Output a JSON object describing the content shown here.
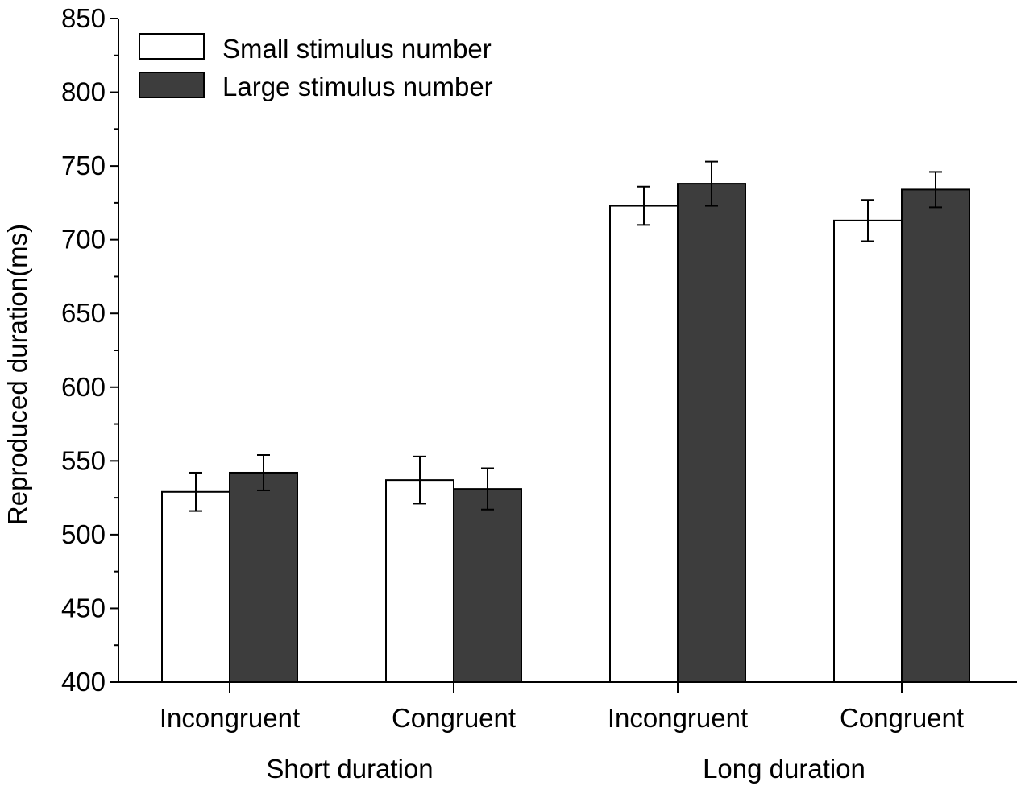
{
  "chart_data": {
    "type": "bar",
    "title": "",
    "ylabel": "Reproduced duration(ms)",
    "xlabel": "",
    "ylim": [
      400,
      850
    ],
    "yticks": [
      400,
      450,
      500,
      550,
      600,
      650,
      700,
      750,
      800,
      850
    ],
    "categories": [
      "Incongruent",
      "Congruent",
      "Incongruent",
      "Congruent"
    ],
    "groups": [
      {
        "label": "Short duration",
        "categories": [
          0,
          1
        ]
      },
      {
        "label": "Long duration",
        "categories": [
          2,
          3
        ]
      }
    ],
    "legend_position": "top-left",
    "series": [
      {
        "name": "Small stimulus number",
        "color": "#ffffff",
        "values": [
          529,
          537,
          723,
          713
        ],
        "errors": [
          13,
          16,
          13,
          14
        ]
      },
      {
        "name": "Large stimulus number",
        "color": "#3d3d3d",
        "values": [
          542,
          531,
          738,
          734
        ],
        "errors": [
          12,
          14,
          15,
          12
        ]
      }
    ]
  }
}
